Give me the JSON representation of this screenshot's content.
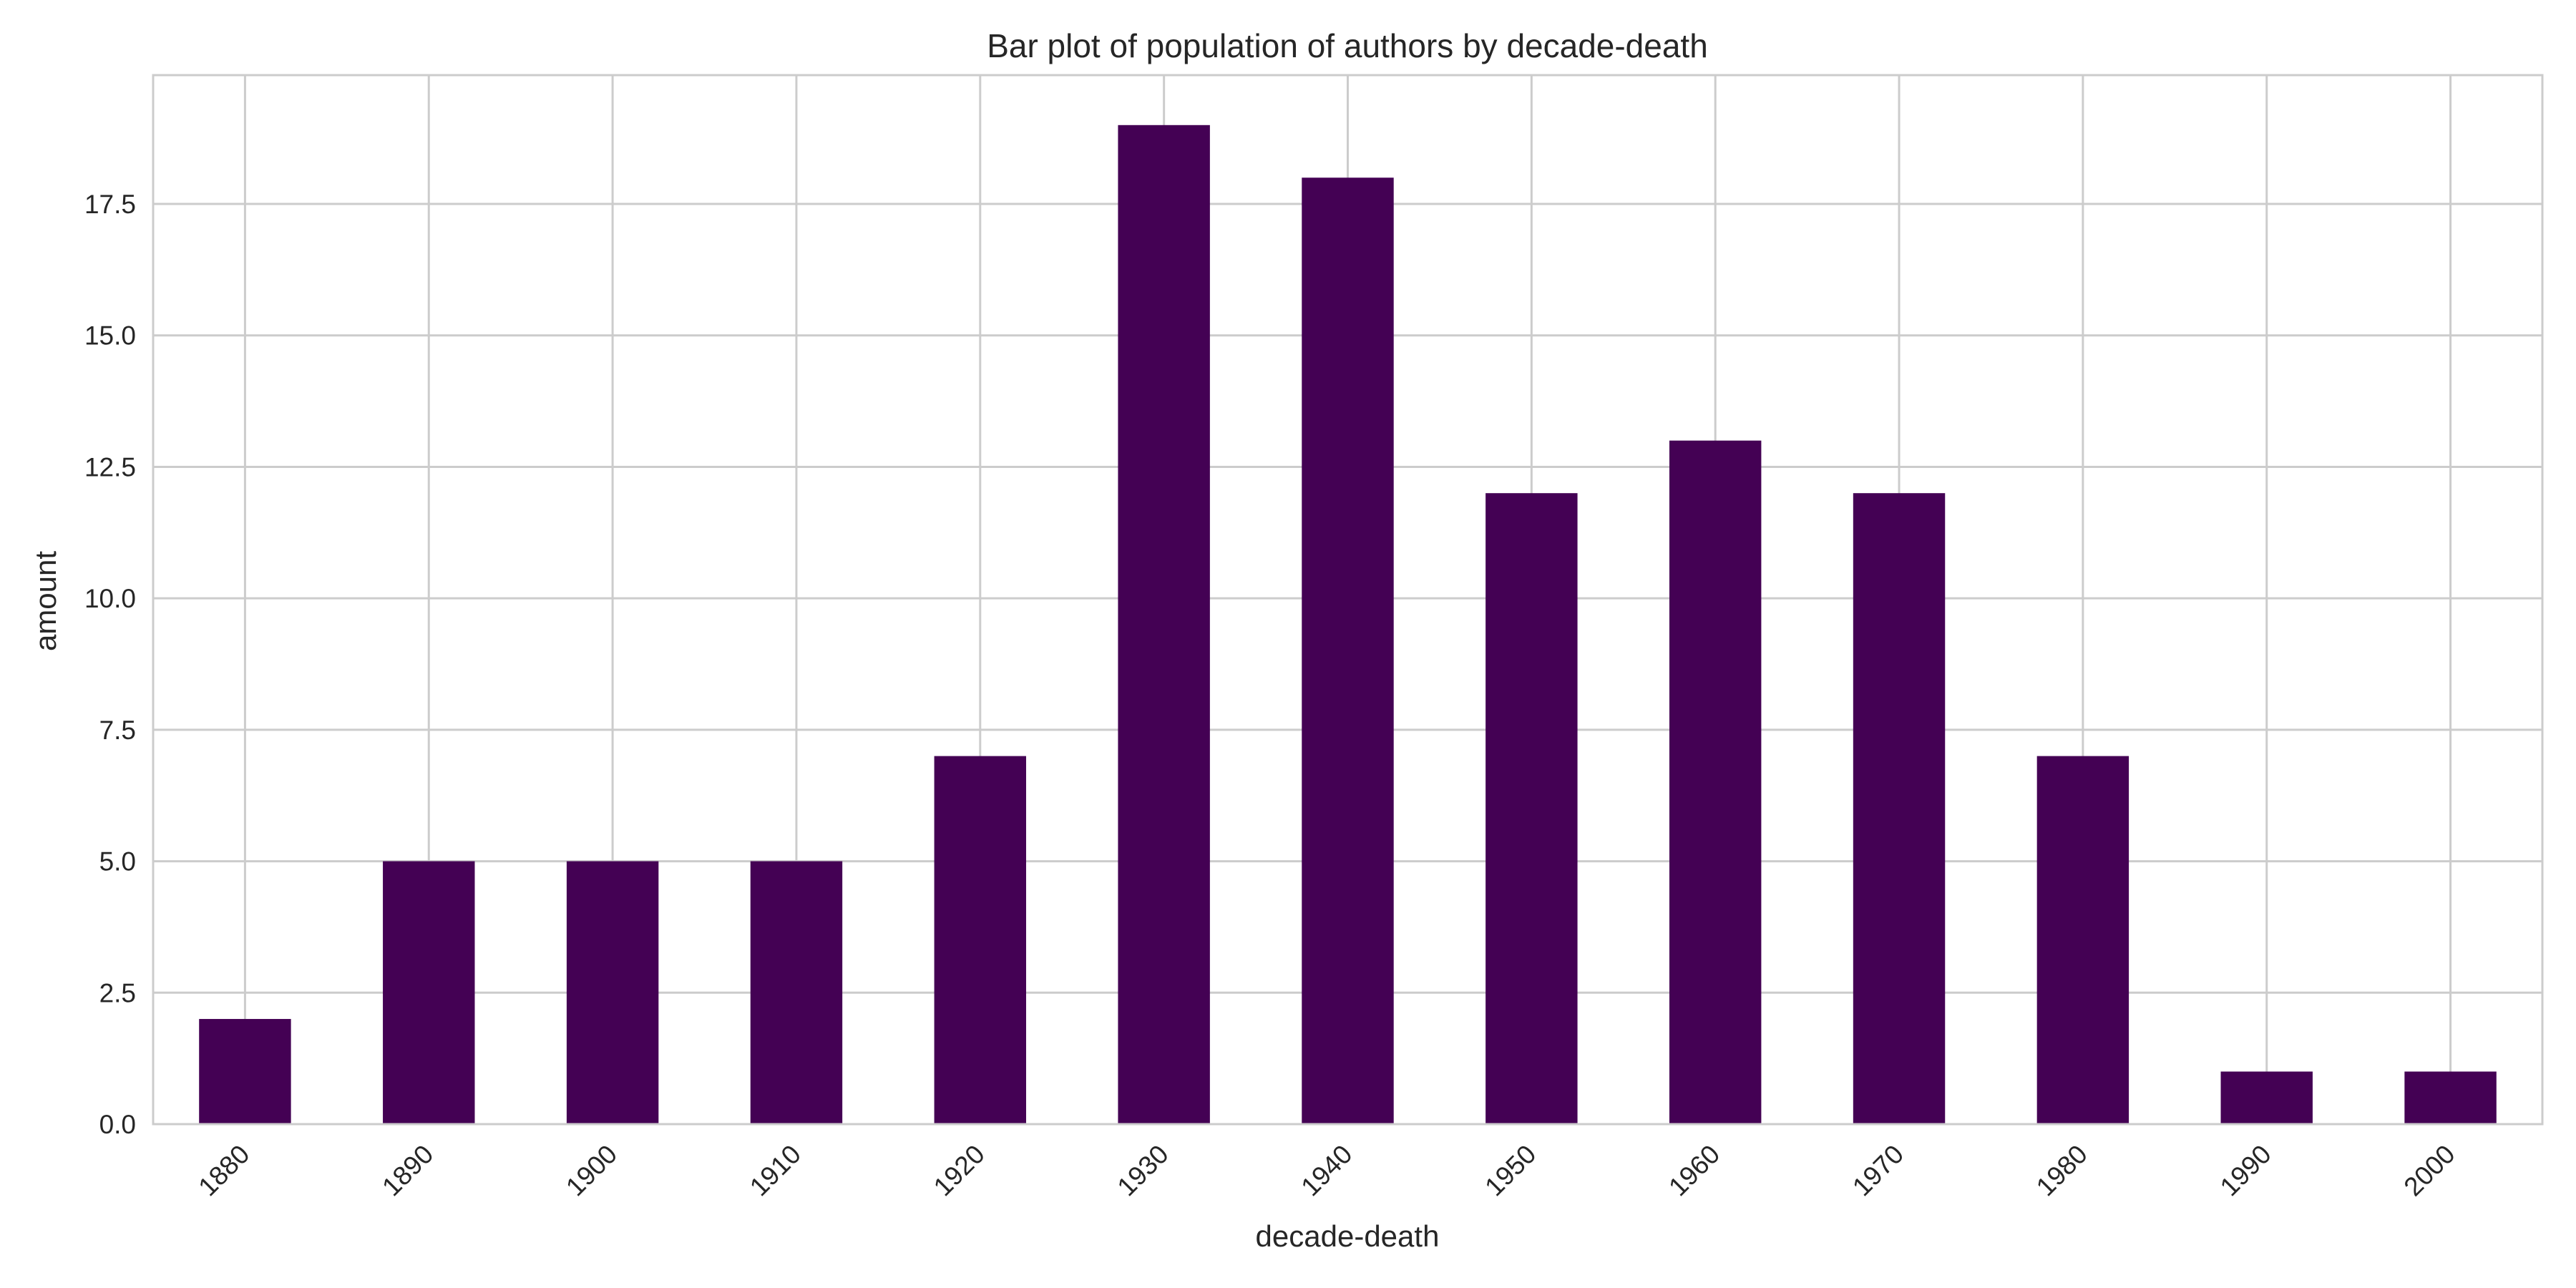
{
  "chart_data": {
    "type": "bar",
    "title": "Bar plot of population of authors by decade-death",
    "xlabel": "decade-death",
    "ylabel": "amount",
    "categories": [
      "1880",
      "1890",
      "1900",
      "1910",
      "1920",
      "1930",
      "1940",
      "1950",
      "1960",
      "1970",
      "1980",
      "1990",
      "2000"
    ],
    "values": [
      2,
      5,
      5,
      5,
      7,
      19,
      18,
      12,
      13,
      12,
      7,
      1,
      1
    ],
    "ylim": [
      0,
      19.95
    ],
    "yticks": [
      "0.0",
      "2.5",
      "5.0",
      "7.5",
      "10.0",
      "12.5",
      "15.0",
      "17.5"
    ],
    "grid": true,
    "legend": "none",
    "bar_color": "#440154",
    "grid_color": "#cccccc"
  }
}
